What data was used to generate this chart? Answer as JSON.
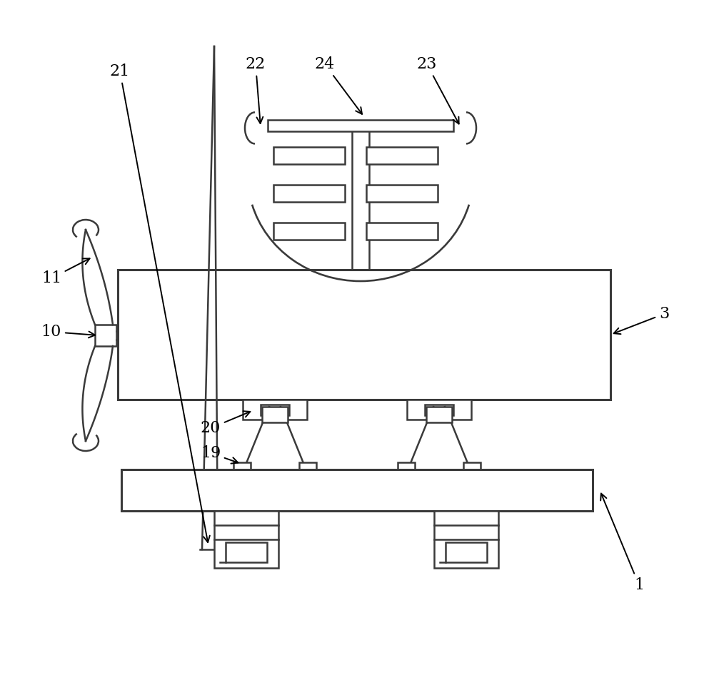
{
  "bg_color": "#ffffff",
  "lc": "#3a3a3a",
  "lw": 1.8,
  "tlw": 2.2
}
